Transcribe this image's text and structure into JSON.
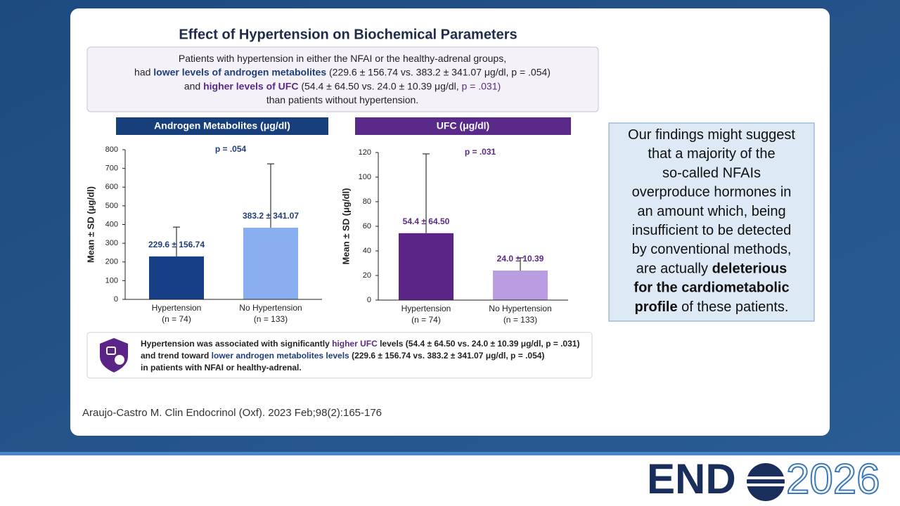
{
  "slide": {
    "title": "Effect of Hypertension on Biochemical Parameters",
    "summary": [
      [
        {
          "text": "Patients with hypertension in either the NFAI or the healthy-adrenal groups,"
        }
      ],
      [
        {
          "text": "had "
        },
        {
          "text": "lower levels of androgen metabolites",
          "color": "#1f3f7a",
          "weight": "bold"
        },
        {
          "text": " (229.6 ± 156.74 vs. 383.2 ± 341.07 μg/dl, p = .054)"
        }
      ],
      [
        {
          "text": "and "
        },
        {
          "text": "higher levels of UFC",
          "color": "#5b2a86",
          "weight": "bold"
        },
        {
          "text": " (54.4 ± 64.50 vs. 24.0 ± 10.39 μg/dl, "
        },
        {
          "text": "p = .031)",
          "color": "#5b2a86"
        }
      ],
      [
        {
          "text": "than patients without hypertension."
        }
      ]
    ],
    "conclusion": [
      [
        {
          "text": "Hypertension was associated with significantly "
        },
        {
          "text": "higher UFC",
          "color": "#5b2a86",
          "weight": "bold"
        },
        {
          "text": " levels (54.4 ± 64.50 vs. 24.0 ± 10.39 μg/dl, p = .031)"
        }
      ],
      [
        {
          "text": "and trend toward "
        },
        {
          "text": "lower androgen metabolites levels",
          "color": "#1f3f7a",
          "weight": "bold"
        },
        {
          "text": " (229.6 ± 156.74 vs. 383.2 ± 341.07 μg/dl, p = .054)"
        }
      ],
      [
        {
          "text": "in patients with NFAI or healthy-adrenal."
        }
      ]
    ],
    "callout": [
      [
        {
          "text": "Our findings might suggest"
        }
      ],
      [
        {
          "text": "that a majority of the"
        }
      ],
      [
        {
          "text": "so-called NFAIs"
        }
      ],
      [
        {
          "text": "overproduce hormones in"
        }
      ],
      [
        {
          "text": "an amount which, being"
        }
      ],
      [
        {
          "text": "insufficient to be detected"
        }
      ],
      [
        {
          "text": "by conventional methods,"
        }
      ],
      [
        {
          "text": "are actually "
        },
        {
          "text": "deleterious",
          "weight": "bold"
        }
      ],
      [
        {
          "text": "for the cardiometabolic",
          "weight": "bold"
        }
      ],
      [
        {
          "text": "profile",
          "weight": "bold"
        },
        {
          "text": " of these patients."
        }
      ]
    ],
    "citation": "Araujo-Castro M. Clin Endocrinol (Oxf). 2023 Feb;98(2):165-176",
    "logo": [
      "END",
      "2026"
    ]
  },
  "chart_data": [
    {
      "type": "bar",
      "title": "Androgen Metabolites (μg/dl)",
      "title_color": "#173f7c",
      "ylabel": "Mean ± SD (μg/dl)",
      "annotation": "p = .054",
      "categories": [
        "Hypertension",
        "No Hypertension"
      ],
      "category_notes": [
        "(n = 74)",
        "(n = 133)"
      ],
      "values": [
        229.6,
        383.2
      ],
      "errors": [
        156.74,
        341.07
      ],
      "value_labels": [
        "229.6 ± 156.74",
        "383.2 ± 341.07"
      ],
      "colors": [
        "#173f88",
        "#8aaff0"
      ],
      "label_color": "#1f3f7a",
      "ylim": [
        0,
        800
      ],
      "yticks": [
        0,
        100,
        200,
        300,
        400,
        500,
        600,
        700,
        800
      ]
    },
    {
      "type": "bar",
      "title": "UFC (μg/dl)",
      "title_color": "#5a2a8a",
      "ylabel": "Mean ± SD (μg/dl)",
      "annotation": "p = .031",
      "categories": [
        "Hypertension",
        "No Hypertension"
      ],
      "category_notes": [
        "(n = 74)",
        "(n = 133)"
      ],
      "values": [
        54.4,
        24.0
      ],
      "errors": [
        64.5,
        10.39
      ],
      "value_labels": [
        "54.4 ± 64.50",
        "24.0 ± 10.39"
      ],
      "colors": [
        "#5b2588",
        "#b99ce2"
      ],
      "label_color": "#5b2a86",
      "ylim": [
        0,
        120
      ],
      "yticks": [
        0,
        20,
        40,
        60,
        80,
        100,
        120
      ]
    }
  ]
}
